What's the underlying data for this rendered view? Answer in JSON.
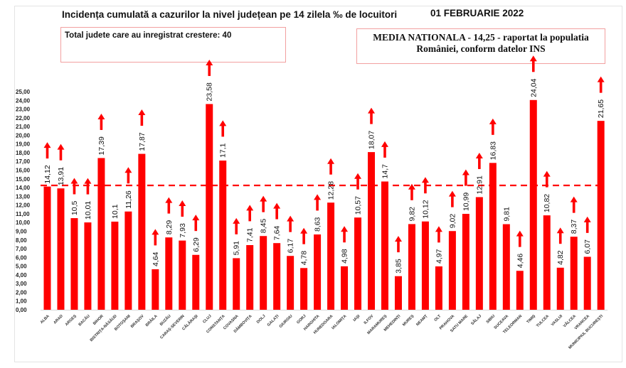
{
  "header": {
    "title": "Incidența cumulată a cazurilor la nivel județean pe 14 zilela ‰ de locuitori",
    "date": "01 FEBRUARIE 2022",
    "total_box": "Total judete care au inregistrat crestere: 40",
    "media_line1": "MEDIA NATIONALA - 14,25 -  raportat la populatia",
    "media_line2": "României, conform datelor INS"
  },
  "colors": {
    "bar": "#ff0000",
    "reference": "#ff0000",
    "arrow": "#ff0000",
    "box_border": "#f2a0a0"
  },
  "chart_data": {
    "type": "bar",
    "title": "Incidența cumulată a cazurilor la nivel județean pe 14 zilela ‰ de locuitori",
    "xlabel": "",
    "ylabel": "",
    "ylim": [
      0,
      25
    ],
    "ytick_step": 1,
    "yticks": [
      "0,00",
      "1,00",
      "2,00",
      "3,00",
      "4,00",
      "5,00",
      "6,00",
      "7,00",
      "8,00",
      "9,00",
      "10,00",
      "11,00",
      "12,00",
      "13,00",
      "14,00",
      "15,00",
      "16,00",
      "17,00",
      "18,00",
      "19,00",
      "20,00",
      "21,00",
      "22,00",
      "23,00",
      "24,00",
      "25,00"
    ],
    "grid": false,
    "legend": "none",
    "reference_line": {
      "value": 14.25,
      "label": "MEDIA NATIONALA"
    },
    "categories": [
      "ALBA",
      "ARAD",
      "ARGEȘ",
      "BACĂU",
      "BIHOR",
      "BISTRIȚA-NĂSĂUD",
      "BOTOȘANI",
      "BRAȘOV",
      "BRĂILA",
      "BUZĂU",
      "CARAȘ-SEVERIN",
      "CĂLĂRAȘI",
      "CLUJ",
      "CONSTANȚA",
      "COVASNA",
      "DÂMBOVIȚA",
      "DOLJ",
      "GALAȚI",
      "GIURGIU",
      "GORJ",
      "HARGHITA",
      "HUNEDOARA",
      "IALOMIȚA",
      "IAȘI",
      "ILFOV",
      "MARAMUREȘ",
      "MEHEDINȚI",
      "MUREȘ",
      "NEAMȚ",
      "OLT",
      "PRAHOVA",
      "SATU MARE",
      "SĂLAJ",
      "SIBIU",
      "SUCEAVA",
      "TELEORMAN",
      "TIMIȘ",
      "TULCEA",
      "VASLUI",
      "VÂLCEA",
      "VRANCEA",
      "MUNICIPIUL BUCUREȘTI"
    ],
    "values": [
      14.12,
      13.91,
      10.5,
      10.01,
      17.39,
      10.1,
      11.26,
      17.87,
      4.64,
      8.29,
      7.93,
      6.29,
      23.58,
      17.1,
      5.91,
      7.41,
      8.45,
      7.64,
      6.17,
      4.78,
      8.63,
      12.28,
      4.98,
      10.57,
      18.07,
      14.7,
      3.85,
      9.82,
      10.12,
      4.97,
      9.02,
      10.99,
      12.91,
      16.83,
      9.81,
      4.46,
      24.04,
      10.82,
      4.82,
      8.37,
      6.07,
      21.65
    ],
    "labels": [
      "14,12",
      "13,91",
      "10,5",
      "10,01",
      "17,39",
      "10,1",
      "11,26",
      "17,87",
      "4,64",
      "8,29",
      "7,93",
      "6,29",
      "23,58",
      "17,1",
      "5,91",
      "7,41",
      "8,45",
      "7,64",
      "6,17",
      "4,78",
      "8,63",
      "12,28",
      "4,98",
      "10,57",
      "18,07",
      "14,7",
      "3,85",
      "9,82",
      "10,12",
      "4,97",
      "9,02",
      "10,99",
      "12,91",
      "16,83",
      "9,81",
      "4,46",
      "24,04",
      "10,82",
      "4,82",
      "8,37",
      "6,07",
      "21,65"
    ],
    "increase_arrow": [
      true,
      true,
      true,
      true,
      true,
      false,
      true,
      true,
      true,
      true,
      true,
      true,
      true,
      true,
      true,
      true,
      true,
      true,
      true,
      true,
      true,
      true,
      true,
      true,
      true,
      true,
      true,
      true,
      true,
      true,
      true,
      true,
      true,
      true,
      false,
      true,
      true,
      true,
      true,
      true,
      true,
      true
    ]
  }
}
